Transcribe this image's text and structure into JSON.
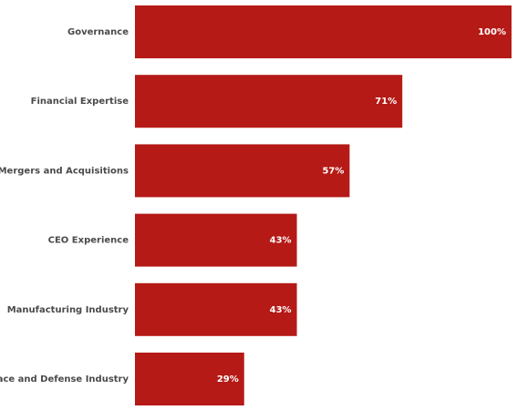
{
  "chart_data": {
    "type": "bar",
    "orientation": "horizontal",
    "categories": [
      "Governance",
      "Financial Expertise",
      "Mergers and Acquisitions",
      "CEO Experience",
      "Manufacturing Industry",
      "Aerospace and Defense Industry"
    ],
    "values": [
      100,
      71,
      57,
      43,
      43,
      29
    ],
    "value_labels": [
      "100%",
      "71%",
      "57%",
      "43%",
      "43%",
      "29%"
    ],
    "color": "#b51a16"
  }
}
